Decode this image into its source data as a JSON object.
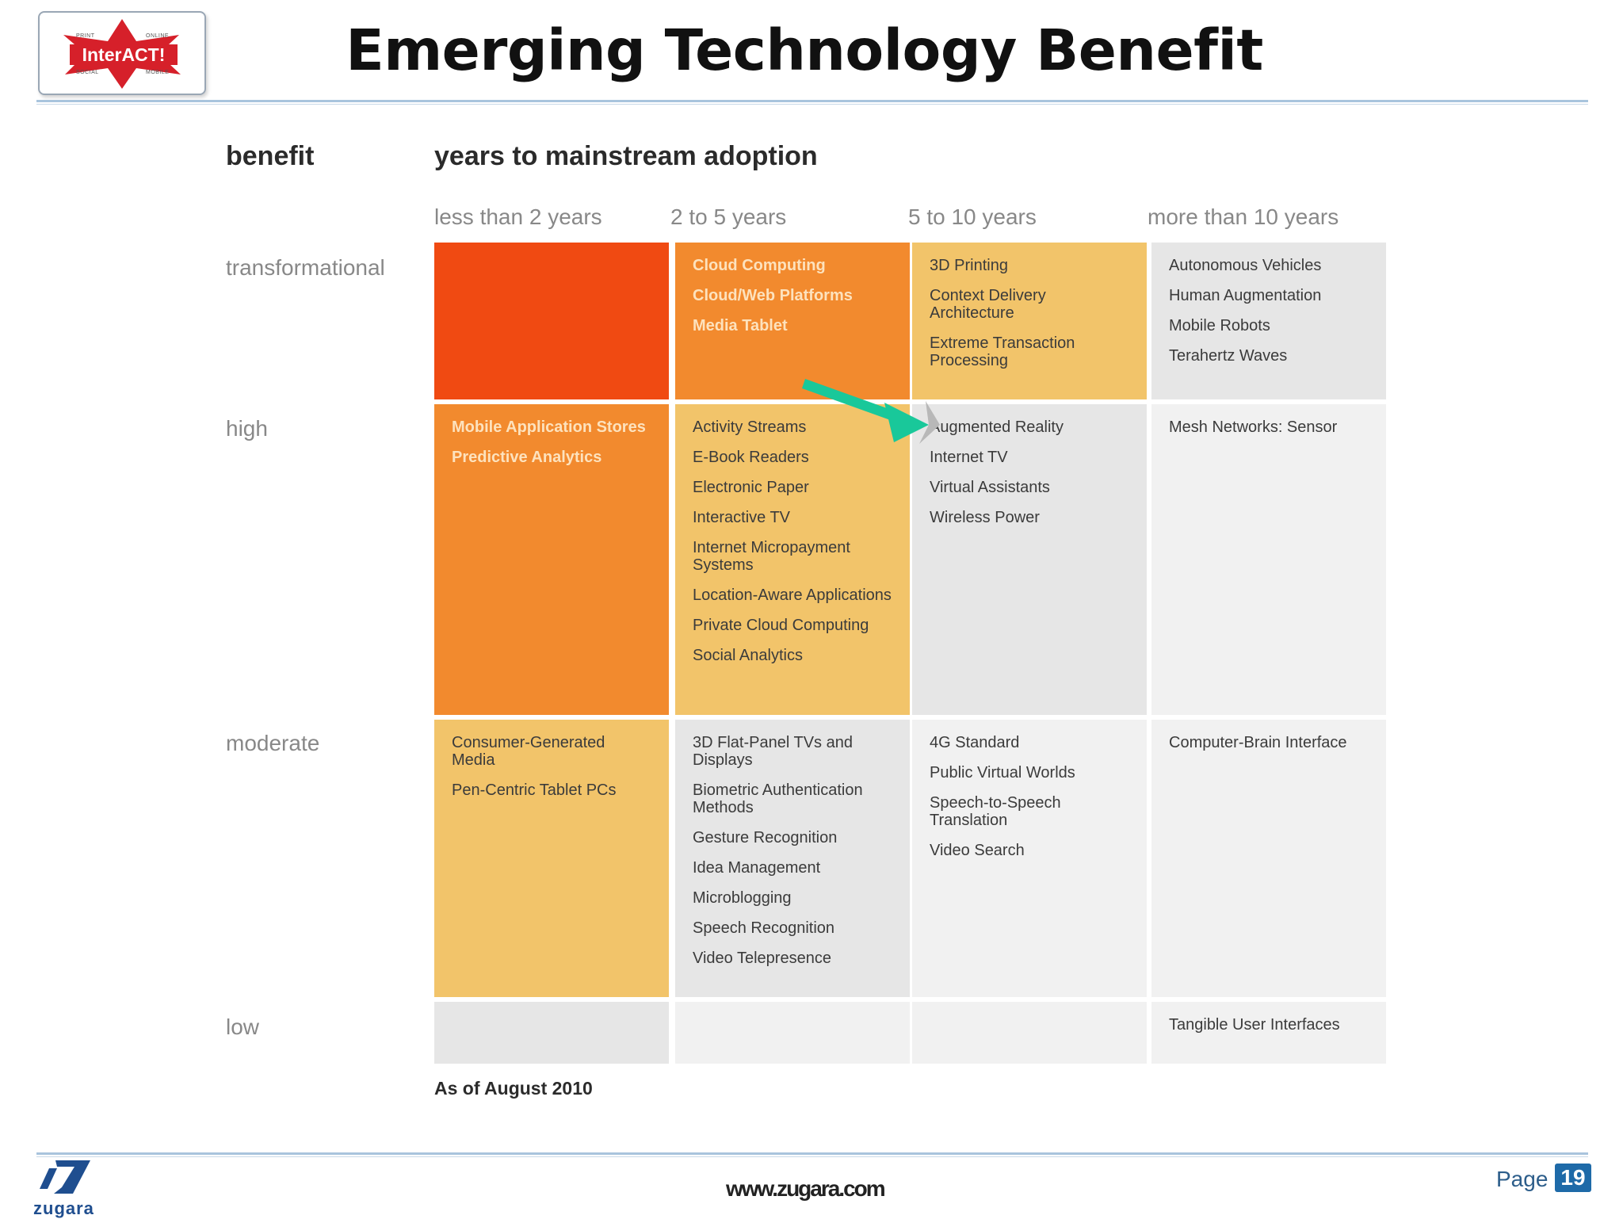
{
  "logo": {
    "text": "InterACT!",
    "corner_tl": "PRINT",
    "corner_tr": "ONLINE",
    "corner_bl": "SOCIAL",
    "corner_br": "MOBILE",
    "color": "#d6202a"
  },
  "title": "Emerging Technology Benefit",
  "headers": {
    "benefit": "benefit",
    "years": "years to mainstream adoption"
  },
  "columns": [
    "less than 2 years",
    "2 to 5 years",
    "5 to 10 years",
    "more than 10 years"
  ],
  "rows": [
    "transformational",
    "high",
    "moderate",
    "low"
  ],
  "colors": {
    "red_orange": "#f04a12",
    "orange": "#f28a2e",
    "yellow": "#f2c46a",
    "gray": "#e6e6e6",
    "light_gray": "#f1f1f1",
    "arrow": "#19c89a",
    "arrow_head": "#b8b8b8"
  },
  "grid": [
    [
      {
        "color": "red_orange",
        "items": []
      },
      {
        "color": "orange",
        "light": true,
        "items": [
          "Cloud Computing",
          "Cloud/Web Platforms",
          "Media Tablet"
        ]
      },
      {
        "color": "yellow",
        "items": [
          "3D Printing",
          "Context Delivery Architecture",
          "Extreme Transaction Processing"
        ]
      },
      {
        "color": "gray",
        "items": [
          "Autonomous Vehicles",
          "Human Augmentation",
          "Mobile Robots",
          "Terahertz Waves"
        ]
      }
    ],
    [
      {
        "color": "orange",
        "light": true,
        "items": [
          "Mobile Application Stores",
          "Predictive Analytics"
        ]
      },
      {
        "color": "yellow",
        "items": [
          "Activity Streams",
          "E-Book Readers",
          "Electronic Paper",
          "Interactive TV",
          "Internet Micropayment Systems",
          "Location-Aware Applications",
          "Private Cloud Computing",
          "Social Analytics"
        ]
      },
      {
        "color": "gray",
        "items": [
          "Augmented Reality",
          "Internet TV",
          "Virtual Assistants",
          "Wireless Power"
        ]
      },
      {
        "color": "light_gray",
        "items": [
          "Mesh Networks: Sensor"
        ]
      }
    ],
    [
      {
        "color": "yellow",
        "items": [
          "Consumer-Generated Media",
          "Pen-Centric Tablet PCs"
        ]
      },
      {
        "color": "gray",
        "items": [
          "3D Flat-Panel TVs and Displays",
          "Biometric Authentication Methods",
          "Gesture Recognition",
          "Idea Management",
          "Microblogging",
          "Speech Recognition",
          "Video Telepresence"
        ]
      },
      {
        "color": "light_gray",
        "items": [
          "4G Standard",
          "Public Virtual Worlds",
          "Speech-to-Speech Translation",
          "Video Search"
        ]
      },
      {
        "color": "light_gray",
        "items": [
          "Computer-Brain Interface"
        ]
      }
    ],
    [
      {
        "color": "gray",
        "items": []
      },
      {
        "color": "light_gray",
        "items": []
      },
      {
        "color": "light_gray",
        "items": []
      },
      {
        "color": "light_gray",
        "items": [
          "Tangible User Interfaces"
        ]
      }
    ]
  ],
  "as_of": "As of August 2010",
  "footer": {
    "url": "www.zugara.com",
    "page_label": "Page",
    "page_number": "19",
    "brand": "zugara"
  }
}
